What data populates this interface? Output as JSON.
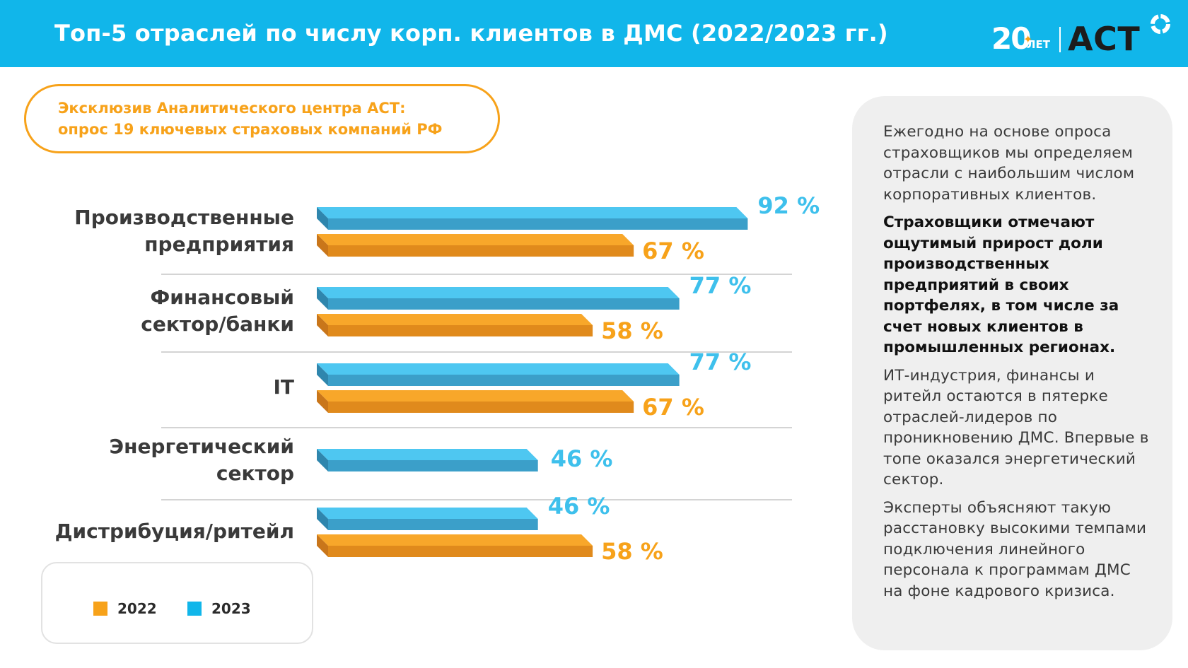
{
  "header": {
    "title": "Топ-5 отраслей по числу корп. клиентов в ДМС (2022/2023 гг.)"
  },
  "logo": {
    "years_number": "20",
    "years_word": "ЛЕТ",
    "brand": "АСТ"
  },
  "exclusive": {
    "line1": "Эксклюзив Аналитического центра АСТ:",
    "line2": "опрос 19 ключевых страховых компаний РФ"
  },
  "chart_data": {
    "type": "bar",
    "orientation": "horizontal",
    "categories": [
      [
        "Производственные",
        "предприятия"
      ],
      [
        "Финансовый",
        "сектор/банки"
      ],
      [
        "IT"
      ],
      [
        "Энергетический",
        "сектор"
      ],
      [
        "Дистрибуция/ритейл"
      ]
    ],
    "series": [
      {
        "name": "2023",
        "color": "#2bb8ea",
        "values": [
          92,
          77,
          77,
          46,
          46
        ],
        "labels": [
          "92 %",
          "77 %",
          "77 %",
          "46 %",
          "46 %"
        ]
      },
      {
        "name": "2022",
        "color": "#f39a1a",
        "values": [
          67,
          58,
          67,
          null,
          58
        ],
        "labels": [
          "67 %",
          "58 %",
          "67 %",
          "",
          "58 %"
        ]
      }
    ],
    "xlim": [
      0,
      100
    ],
    "legend": "bottom-left"
  },
  "legend": {
    "items": [
      {
        "label": "2022",
        "color": "#f7a21a"
      },
      {
        "label": "2023",
        "color": "#11b6ea"
      }
    ]
  },
  "side_panel": {
    "p1": "Ежегодно на основе опроса страховщиков мы определяем отрасли с наибольшим числом корпоративных клиентов.",
    "p2": "Страховщики отмечают ощутимый прирост доли производственных предприятий в своих портфелях, в том числе за счет новых клиентов в промышленных регионах.",
    "p3": "ИТ-индустрия, финансы и ритейл остаются в пятерке отраслей-лидеров по проникновению ДМС. Впервые в топе оказался энергетический сектор.",
    "p4": "Эксперты объясняют такую расстановку высокими темпами подключения линейного персонала к программам ДМС на фоне кадрового кризиса."
  }
}
